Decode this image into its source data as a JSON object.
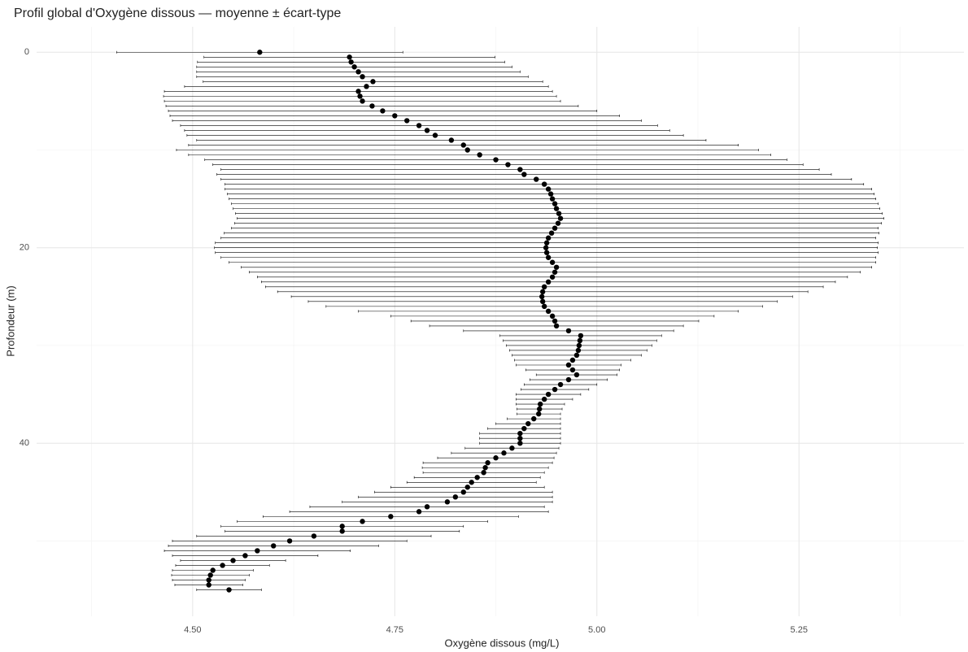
{
  "chart_data": {
    "type": "errorbar-scatter",
    "title": "Profil global d'Oxygène dissous — moyenne ± écart-type",
    "x_label": "Oxygène dissous (mg/L)",
    "y_label": "Profondeur (m)",
    "y_reversed": true,
    "grid": true,
    "color": "#000000",
    "xlim": [
      4.307,
      5.454
    ],
    "ylim": [
      -2.6,
      57.7
    ],
    "xticks": [
      {
        "value": 4.5,
        "label": "4.50"
      },
      {
        "value": 4.75,
        "label": "4.75"
      },
      {
        "value": 5.0,
        "label": "5.00"
      },
      {
        "value": 5.25,
        "label": "5.25"
      }
    ],
    "yticks": [
      0,
      20,
      40
    ],
    "y": [
      0,
      0.5,
      1,
      1.5,
      2,
      2.5,
      3,
      3.5,
      4,
      4.5,
      5,
      5.5,
      6,
      6.5,
      7,
      7.5,
      8,
      8.5,
      9,
      9.5,
      10,
      10.5,
      11,
      11.5,
      12,
      12.5,
      13,
      13.5,
      14,
      14.5,
      15,
      15.5,
      16,
      16.5,
      17,
      17.5,
      18,
      18.5,
      19,
      19.5,
      20,
      20.5,
      21,
      21.5,
      22,
      22.5,
      23,
      23.5,
      24,
      24.5,
      25,
      25.5,
      26,
      26.5,
      27,
      27.5,
      28,
      28.5,
      29,
      29.5,
      30,
      30.5,
      31,
      31.5,
      32,
      32.5,
      33,
      33.5,
      34,
      34.5,
      35,
      35.5,
      36,
      36.5,
      37,
      37.5,
      38,
      38.5,
      39,
      39.5,
      40,
      40.5,
      41,
      41.5,
      42,
      42.5,
      43,
      43.5,
      44,
      44.5,
      45,
      45.5,
      46,
      46.5,
      47,
      47.5,
      48,
      48.5,
      49,
      49.5,
      50,
      50.5,
      51,
      51.5,
      52,
      52.5,
      53,
      53.5,
      54,
      54.5,
      55
    ],
    "values": [
      4.583,
      4.694,
      4.696,
      4.7,
      4.705,
      4.71,
      4.723,
      4.715,
      4.705,
      4.707,
      4.71,
      4.722,
      4.735,
      4.75,
      4.765,
      4.78,
      4.79,
      4.8,
      4.82,
      4.835,
      4.84,
      4.855,
      4.875,
      4.89,
      4.905,
      4.91,
      4.925,
      4.935,
      4.94,
      4.943,
      4.945,
      4.948,
      4.95,
      4.953,
      4.955,
      4.952,
      4.948,
      4.944,
      4.94,
      4.938,
      4.937,
      4.938,
      4.94,
      4.945,
      4.95,
      4.948,
      4.945,
      4.94,
      4.935,
      4.933,
      4.932,
      4.933,
      4.935,
      4.94,
      4.945,
      4.948,
      4.95,
      4.965,
      4.98,
      4.979,
      4.978,
      4.977,
      4.975,
      4.97,
      4.965,
      4.97,
      4.975,
      4.965,
      4.955,
      4.948,
      4.94,
      4.935,
      4.93,
      4.929,
      4.928,
      4.922,
      4.915,
      4.91,
      4.905,
      4.905,
      4.905,
      4.895,
      4.885,
      4.875,
      4.865,
      4.862,
      4.86,
      4.852,
      4.845,
      4.84,
      4.835,
      4.825,
      4.815,
      4.79,
      4.78,
      4.745,
      4.71,
      4.685,
      4.685,
      4.65,
      4.62,
      4.6,
      4.58,
      4.565,
      4.55,
      4.537,
      4.525,
      4.522,
      4.52,
      4.52,
      4.545
    ],
    "errors": [
      0.177,
      0.18,
      0.19,
      0.195,
      0.2,
      0.205,
      0.21,
      0.225,
      0.24,
      0.243,
      0.245,
      0.255,
      0.265,
      0.278,
      0.29,
      0.295,
      0.3,
      0.307,
      0.315,
      0.34,
      0.36,
      0.36,
      0.36,
      0.365,
      0.37,
      0.38,
      0.39,
      0.395,
      0.4,
      0.4,
      0.4,
      0.4,
      0.4,
      0.4,
      0.4,
      0.4,
      0.4,
      0.405,
      0.405,
      0.41,
      0.41,
      0.41,
      0.405,
      0.4,
      0.39,
      0.378,
      0.365,
      0.355,
      0.345,
      0.328,
      0.31,
      0.29,
      0.27,
      0.235,
      0.2,
      0.178,
      0.157,
      0.13,
      0.1,
      0.095,
      0.09,
      0.085,
      0.08,
      0.072,
      0.065,
      0.058,
      0.05,
      0.048,
      0.045,
      0.042,
      0.04,
      0.035,
      0.03,
      0.028,
      0.027,
      0.033,
      0.04,
      0.045,
      0.05,
      0.05,
      0.05,
      0.058,
      0.065,
      0.072,
      0.08,
      0.078,
      0.075,
      0.078,
      0.08,
      0.095,
      0.11,
      0.12,
      0.13,
      0.145,
      0.16,
      0.158,
      0.155,
      0.15,
      0.145,
      0.145,
      0.145,
      0.13,
      0.115,
      0.09,
      0.065,
      0.058,
      0.05,
      0.048,
      0.045,
      0.042,
      0.04
    ]
  }
}
